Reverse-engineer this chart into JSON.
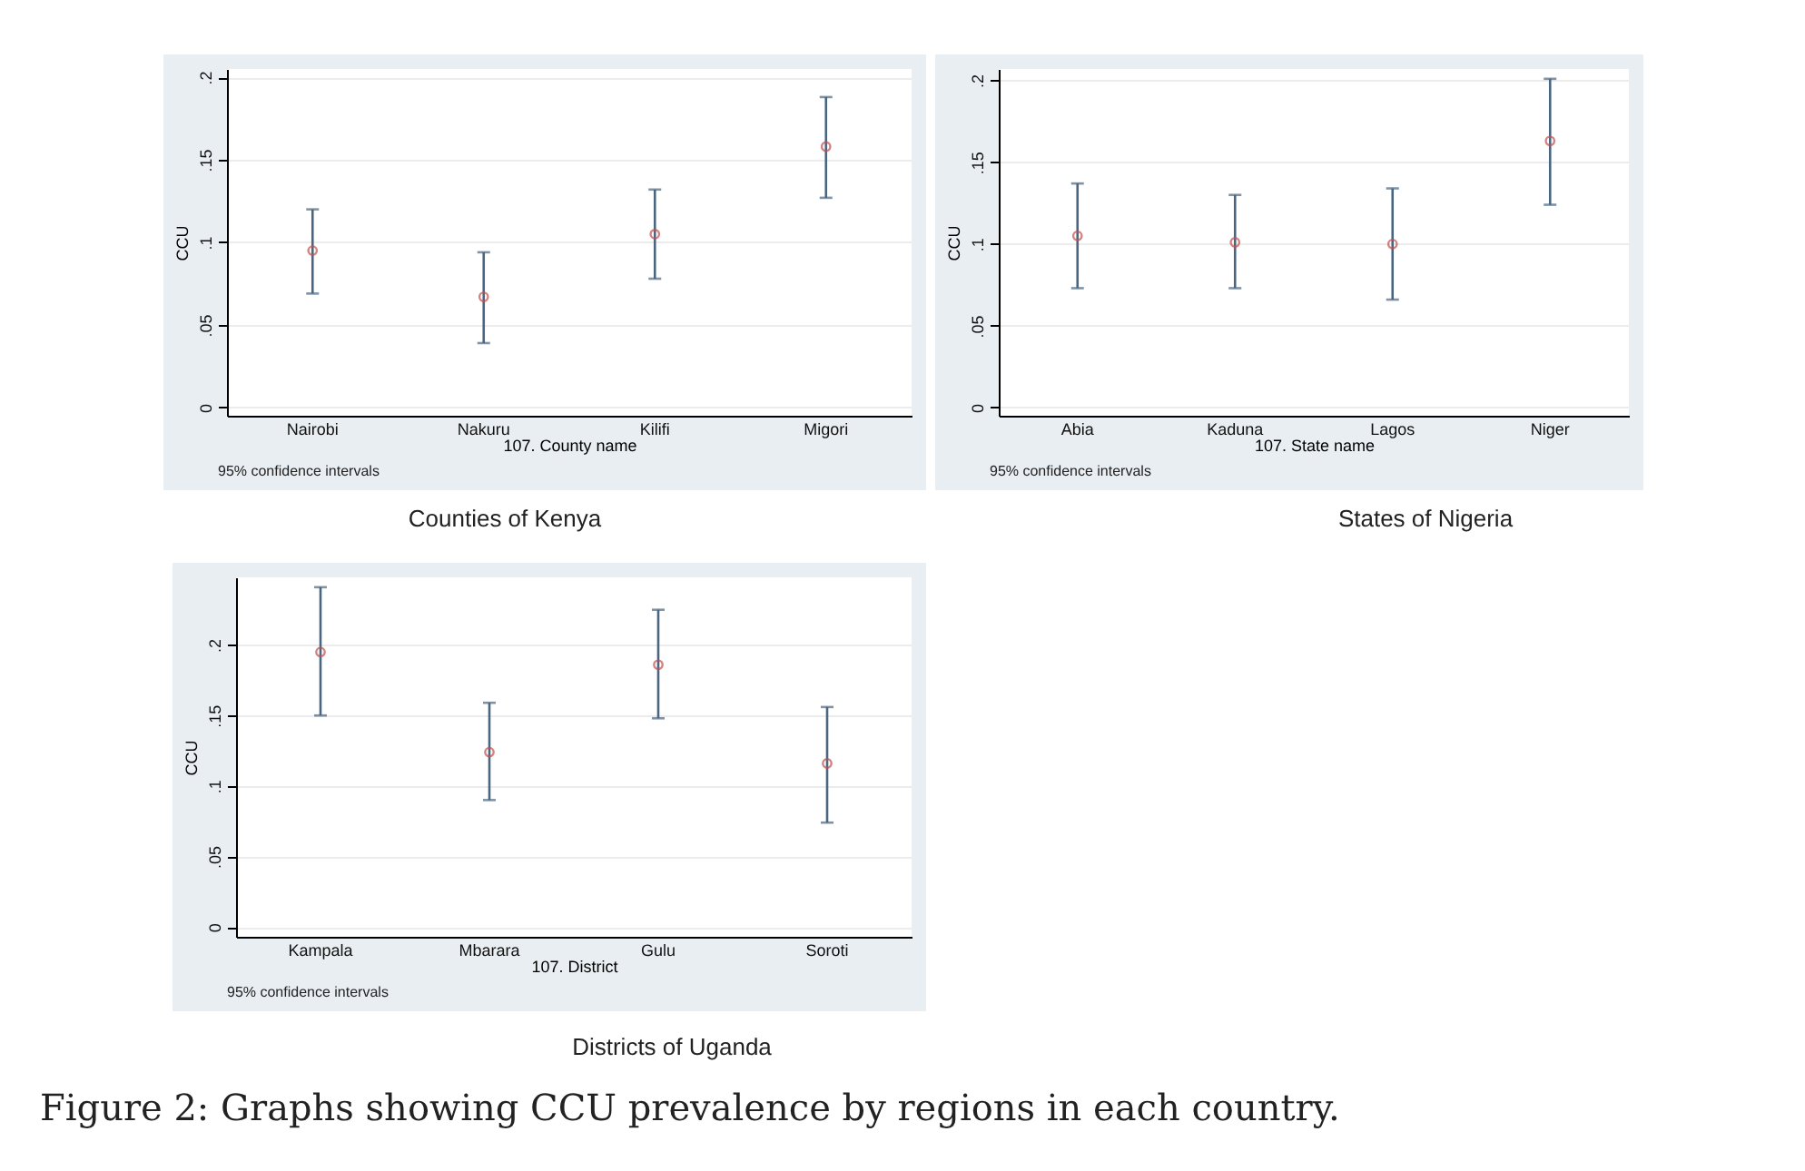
{
  "chart_data": [
    {
      "type": "scatter",
      "title": "Counties of Kenya",
      "xlabel": "107. County name",
      "ylabel": "CCU",
      "categories": [
        "Nairobi",
        "Nakuru",
        "Kilifi",
        "Migori"
      ],
      "series": [
        {
          "color": "#c0504d",
          "values": [
            0.095,
            0.067,
            0.105,
            0.158
          ],
          "errors": [
            [
              0.069,
              0.12
            ],
            [
              0.039,
              0.094
            ],
            [
              0.078,
              0.132
            ],
            [
              0.127,
              0.188
            ]
          ]
        }
      ],
      "ylim": [
        -0.005,
        0.205
      ],
      "yticks": [
        {
          "value": 0,
          "label": "0"
        },
        {
          "value": 0.05,
          "label": ".05"
        },
        {
          "value": 0.1,
          "label": ".1"
        },
        {
          "value": 0.15,
          "label": ".15"
        },
        {
          "value": 0.2,
          "label": ".2"
        }
      ],
      "grid": "y",
      "marker": "circle",
      "annotations": [
        "95% confidence intervals"
      ]
    },
    {
      "type": "scatter",
      "title": "States of Nigeria",
      "xlabel": "107. State name",
      "ylabel": "CCU",
      "categories": [
        "Abia",
        "Kaduna",
        "Lagos",
        "Niger"
      ],
      "series": [
        {
          "color": "#c0504d",
          "values": [
            0.105,
            0.101,
            0.1,
            0.163
          ],
          "errors": [
            [
              0.073,
              0.137
            ],
            [
              0.073,
              0.13
            ],
            [
              0.066,
              0.134
            ],
            [
              0.124,
              0.201
            ]
          ]
        }
      ],
      "ylim": [
        -0.005,
        0.207
      ],
      "yticks": [
        {
          "value": 0,
          "label": "0"
        },
        {
          "value": 0.05,
          "label": ".05"
        },
        {
          "value": 0.1,
          "label": ".1"
        },
        {
          "value": 0.15,
          "label": ".15"
        },
        {
          "value": 0.2,
          "label": ".2"
        }
      ],
      "grid": "y",
      "marker": "circle",
      "annotations": [
        "95% confidence intervals"
      ]
    },
    {
      "type": "scatter",
      "title": "Districts of Uganda",
      "xlabel": "107. District",
      "ylabel": "CCU",
      "categories": [
        "Kampala",
        "Mbarara",
        "Gulu",
        "Soroti"
      ],
      "series": [
        {
          "color": "#c0504d",
          "values": [
            0.195,
            0.124,
            0.186,
            0.116
          ],
          "errors": [
            [
              0.15,
              0.241
            ],
            [
              0.09,
              0.159
            ],
            [
              0.148,
              0.225
            ],
            [
              0.074,
              0.156
            ]
          ]
        }
      ],
      "ylim": [
        -0.007,
        0.248
      ],
      "yticks": [
        {
          "value": 0,
          "label": "0"
        },
        {
          "value": 0.05,
          "label": ".05"
        },
        {
          "value": 0.1,
          "label": ".1"
        },
        {
          "value": 0.15,
          "label": ".15"
        },
        {
          "value": 0.2,
          "label": ".2"
        }
      ],
      "grid": "y",
      "marker": "circle",
      "annotations": [
        "95% confidence intervals",
        "Figure 2: Graphs showing CCU prevalence by regions in each country."
      ]
    }
  ]
}
